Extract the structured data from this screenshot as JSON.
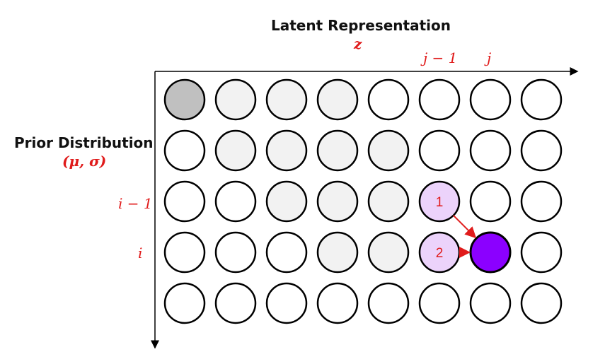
{
  "title": "Latent Representation",
  "z_label": "z",
  "col_labels": {
    "j_minus_1": "j − 1",
    "j": "j"
  },
  "row_title": "Prior Distribution",
  "row_sub": "(μ, σ)",
  "row_labels": {
    "i_minus_1": "i − 1",
    "i": "i"
  },
  "colors": {
    "start": "#c0c0c0",
    "visited": "#f2f2f2",
    "empty": "#ffffff",
    "neighbor": "#ecd3fb",
    "current": "#8b00ff",
    "arrow": "#e01b1b",
    "stroke": "#000000"
  },
  "grid": {
    "rows": 5,
    "cols": 8,
    "states": [
      [
        "start",
        "visited",
        "visited",
        "visited",
        "empty",
        "empty",
        "empty",
        "empty"
      ],
      [
        "empty",
        "visited",
        "visited",
        "visited",
        "visited",
        "empty",
        "empty",
        "empty"
      ],
      [
        "empty",
        "empty",
        "visited",
        "visited",
        "visited",
        "neighbor",
        "empty",
        "empty"
      ],
      [
        "empty",
        "empty",
        "empty",
        "visited",
        "visited",
        "neighbor",
        "current",
        "empty"
      ],
      [
        "empty",
        "empty",
        "empty",
        "empty",
        "empty",
        "empty",
        "empty",
        "empty"
      ]
    ],
    "numbered": [
      {
        "row": 2,
        "col": 5,
        "label": "1"
      },
      {
        "row": 3,
        "col": 5,
        "label": "2"
      }
    ],
    "arrows": [
      {
        "from": [
          2,
          5
        ],
        "to": [
          3,
          6
        ]
      },
      {
        "from": [
          3,
          5
        ],
        "to": [
          3,
          6
        ]
      }
    ]
  }
}
